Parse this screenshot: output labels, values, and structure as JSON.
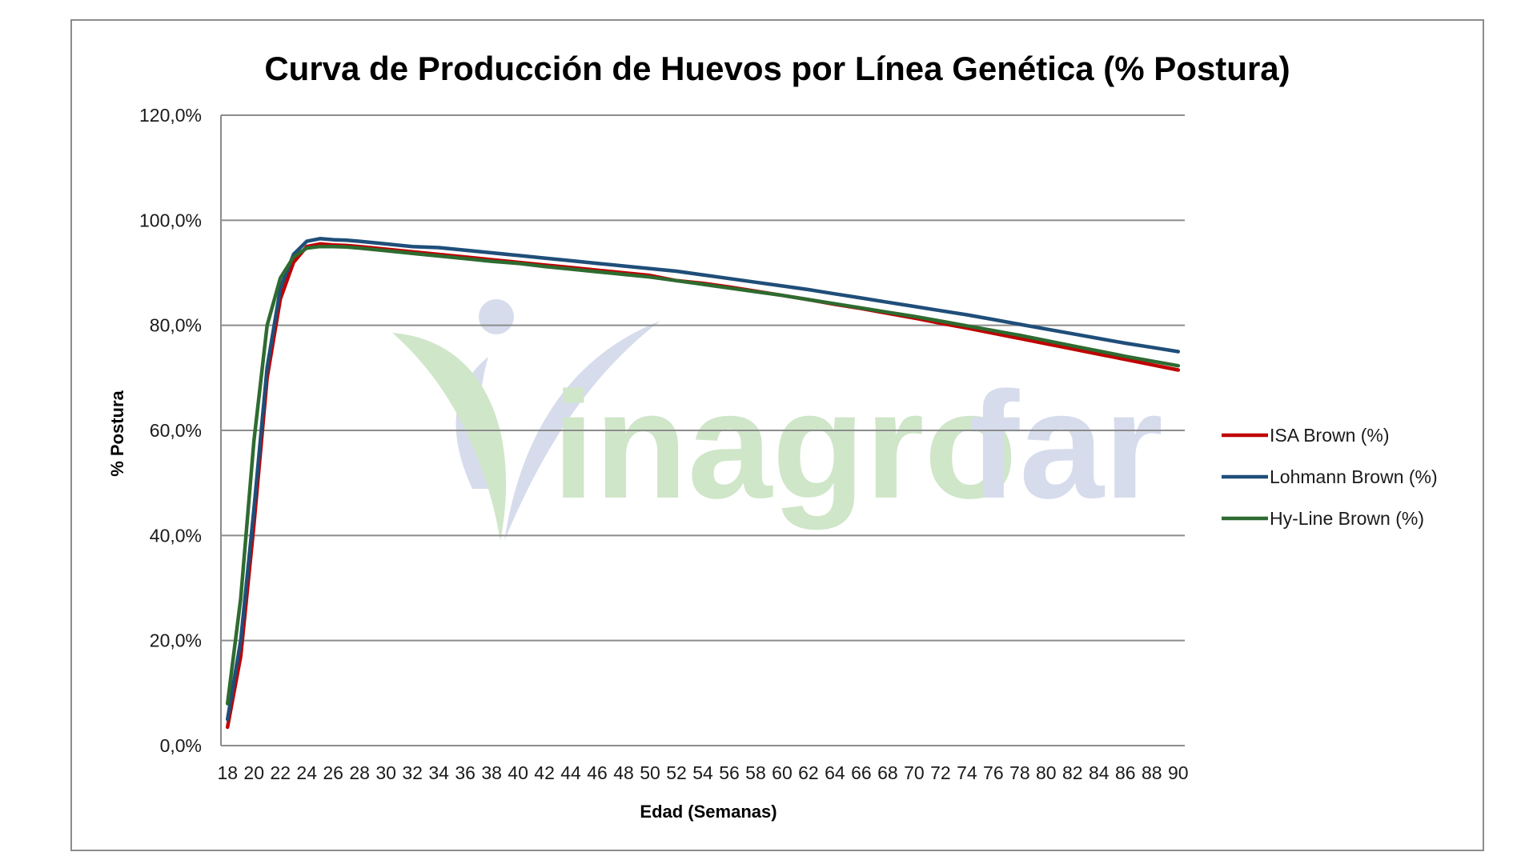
{
  "watermark": {
    "text_green": "inagro",
    "text_blue": "far",
    "green": "#cfe6c9",
    "blue": "#d6dcec"
  },
  "chart_data": {
    "type": "line",
    "title": "Curva de Producción de Huevos por Línea Genética (% Postura)",
    "xlabel": "Edad (Semanas)",
    "ylabel": "% Postura",
    "ylim": [
      0,
      120
    ],
    "yticks": [
      0,
      20,
      40,
      60,
      80,
      100,
      120
    ],
    "ytick_labels": [
      "0,0%",
      "20,0%",
      "40,0%",
      "60,0%",
      "80,0%",
      "100,0%",
      "120,0%"
    ],
    "xlim": [
      18,
      90
    ],
    "xticks": [
      18,
      20,
      22,
      24,
      26,
      28,
      30,
      32,
      34,
      36,
      38,
      40,
      42,
      44,
      46,
      48,
      50,
      52,
      54,
      56,
      58,
      60,
      62,
      64,
      66,
      68,
      70,
      72,
      74,
      76,
      78,
      80,
      82,
      84,
      86,
      88,
      90
    ],
    "grid": true,
    "legend_position": "right",
    "series": [
      {
        "name": "ISA Brown (%)",
        "color": "#c00000",
        "points": [
          [
            18,
            3.5
          ],
          [
            19,
            17
          ],
          [
            20,
            42
          ],
          [
            21,
            70
          ],
          [
            22,
            85
          ],
          [
            23,
            92
          ],
          [
            24,
            95
          ],
          [
            25,
            95.5
          ],
          [
            26,
            95.3
          ],
          [
            27,
            95.2
          ],
          [
            28,
            95
          ],
          [
            30,
            94.5
          ],
          [
            32,
            94
          ],
          [
            34,
            93.5
          ],
          [
            36,
            93
          ],
          [
            38,
            92.5
          ],
          [
            40,
            92
          ],
          [
            42,
            91.5
          ],
          [
            44,
            91
          ],
          [
            46,
            90.5
          ],
          [
            48,
            90
          ],
          [
            50,
            89.5
          ],
          [
            52,
            88.5
          ],
          [
            54,
            88
          ],
          [
            56,
            87.3
          ],
          [
            58,
            86.5
          ],
          [
            60,
            85.7
          ],
          [
            62,
            84.9
          ],
          [
            64,
            84
          ],
          [
            66,
            83.2
          ],
          [
            68,
            82.3
          ],
          [
            70,
            81.4
          ],
          [
            72,
            80.4
          ],
          [
            74,
            79.5
          ],
          [
            76,
            78.5
          ],
          [
            78,
            77.5
          ],
          [
            80,
            76.5
          ],
          [
            82,
            75.5
          ],
          [
            84,
            74.5
          ],
          [
            86,
            73.5
          ],
          [
            88,
            72.5
          ],
          [
            90,
            71.5
          ]
        ]
      },
      {
        "name": "Lohmann Brown (%)",
        "color": "#1f4e79",
        "points": [
          [
            18,
            5
          ],
          [
            19,
            20
          ],
          [
            20,
            45
          ],
          [
            21,
            72
          ],
          [
            22,
            87
          ],
          [
            23,
            93.5
          ],
          [
            24,
            96
          ],
          [
            25,
            96.5
          ],
          [
            26,
            96.3
          ],
          [
            27,
            96.2
          ],
          [
            28,
            96
          ],
          [
            30,
            95.5
          ],
          [
            32,
            95
          ],
          [
            34,
            94.8
          ],
          [
            36,
            94.3
          ],
          [
            38,
            93.8
          ],
          [
            40,
            93.3
          ],
          [
            42,
            92.8
          ],
          [
            44,
            92.3
          ],
          [
            46,
            91.8
          ],
          [
            48,
            91.3
          ],
          [
            50,
            90.8
          ],
          [
            52,
            90.3
          ],
          [
            54,
            89.6
          ],
          [
            56,
            88.9
          ],
          [
            58,
            88.2
          ],
          [
            60,
            87.5
          ],
          [
            62,
            86.8
          ],
          [
            64,
            86
          ],
          [
            66,
            85.2
          ],
          [
            68,
            84.4
          ],
          [
            70,
            83.6
          ],
          [
            72,
            82.8
          ],
          [
            74,
            82
          ],
          [
            76,
            81.1
          ],
          [
            78,
            80.2
          ],
          [
            80,
            79.3
          ],
          [
            82,
            78.4
          ],
          [
            84,
            77.5
          ],
          [
            86,
            76.6
          ],
          [
            88,
            75.8
          ],
          [
            90,
            75
          ]
        ]
      },
      {
        "name": "Hy-Line Brown (%)",
        "color": "#2e6b30",
        "points": [
          [
            18,
            8
          ],
          [
            19,
            28
          ],
          [
            20,
            58
          ],
          [
            21,
            80
          ],
          [
            22,
            89
          ],
          [
            23,
            93
          ],
          [
            24,
            94.7
          ],
          [
            25,
            95
          ],
          [
            26,
            95
          ],
          [
            27,
            94.9
          ],
          [
            28,
            94.7
          ],
          [
            30,
            94.2
          ],
          [
            32,
            93.7
          ],
          [
            34,
            93.2
          ],
          [
            36,
            92.7
          ],
          [
            38,
            92.2
          ],
          [
            40,
            91.8
          ],
          [
            42,
            91.2
          ],
          [
            44,
            90.7
          ],
          [
            46,
            90.2
          ],
          [
            48,
            89.7
          ],
          [
            50,
            89.2
          ],
          [
            52,
            88.5
          ],
          [
            54,
            87.8
          ],
          [
            56,
            87.1
          ],
          [
            58,
            86.4
          ],
          [
            60,
            85.7
          ],
          [
            62,
            84.9
          ],
          [
            64,
            84.1
          ],
          [
            66,
            83.3
          ],
          [
            68,
            82.5
          ],
          [
            70,
            81.7
          ],
          [
            72,
            80.8
          ],
          [
            74,
            79.9
          ],
          [
            76,
            79
          ],
          [
            78,
            78.1
          ],
          [
            80,
            77.1
          ],
          [
            82,
            76.1
          ],
          [
            84,
            75.1
          ],
          [
            86,
            74.1
          ],
          [
            88,
            73.2
          ],
          [
            90,
            72.3
          ]
        ]
      }
    ]
  }
}
